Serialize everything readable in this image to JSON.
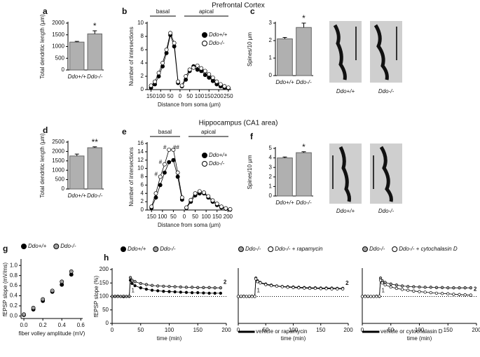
{
  "sections": [
    "Prefrontal Cortex",
    "Hippocampus (CA1 area)"
  ],
  "chart_data": [
    {
      "type": "bar",
      "label": "a",
      "categories": [
        "Ddo+/+",
        "Ddo-/-"
      ],
      "values": [
        1190,
        1540
      ],
      "errors": [
        30,
        130
      ],
      "ylim": [
        0,
        2000
      ],
      "yticks": [
        0,
        500,
        1000,
        1500,
        2000
      ],
      "ylabel": "Total dendritic length (µm)",
      "significance": "*",
      "color": "#b0b0b0"
    },
    {
      "type": "line",
      "label": "b",
      "group_labels": [
        "basal",
        "apical"
      ],
      "x": [
        -150,
        -130,
        -110,
        -90,
        -70,
        -50,
        -30,
        -10,
        0,
        10,
        30,
        50,
        70,
        90,
        110,
        130,
        150,
        170,
        190,
        210,
        230,
        250
      ],
      "series": [
        {
          "name": "Ddo+/+",
          "color": "#000000",
          "values": [
            0.3,
            0.8,
            2,
            3.5,
            5.5,
            8.2,
            6.5,
            1,
            null,
            0.5,
            1.5,
            2.8,
            3.5,
            3,
            2.8,
            2.2,
            1.8,
            1.3,
            0.8,
            0.5,
            0.3,
            0.2
          ]
        },
        {
          "name": "Ddo-/-",
          "color": "#ffffff",
          "values": [
            0.6,
            1.2,
            2.5,
            4,
            6,
            8.5,
            7,
            1.2,
            null,
            0.6,
            2,
            3,
            3.3,
            3.6,
            3.2,
            2.8,
            2.3,
            1.8,
            1.2,
            0.8,
            0.5,
            0.3
          ]
        }
      ],
      "xlim": [
        -170,
        265
      ],
      "xticks": [
        {
          "value": -150,
          "label": "150"
        },
        {
          "value": -100,
          "label": "100"
        },
        {
          "value": -50,
          "label": "50"
        },
        0,
        50,
        100,
        150,
        200,
        250
      ],
      "ylim": [
        0,
        10
      ],
      "yticks": [
        0,
        2,
        4,
        6,
        8,
        10
      ],
      "xlabel": "Distance from soma (µm)",
      "ylabel": "Number of intersections"
    },
    {
      "type": "bar",
      "label": "c",
      "categories": [
        "Ddo+/+",
        "Ddo-/-"
      ],
      "values": [
        2.1,
        2.75
      ],
      "errors": [
        0.08,
        0.25
      ],
      "ylim": [
        0,
        3
      ],
      "yticks": [
        0,
        1,
        2,
        3
      ],
      "ylabel": "Spines/10 µm",
      "significance": "*",
      "color": "#b0b0b0",
      "image_labels": [
        "Ddo+/+",
        "Ddo-/-"
      ]
    },
    {
      "type": "bar",
      "label": "d",
      "categories": [
        "Ddo+/+",
        "Ddo-/-"
      ],
      "values": [
        1760,
        2200
      ],
      "errors": [
        100,
        50
      ],
      "ylim": [
        0,
        2500
      ],
      "yticks": [
        0,
        500,
        1000,
        1500,
        2000,
        2500
      ],
      "ylabel": "Total dendritic length (µm)",
      "significance": "**",
      "color": "#b0b0b0"
    },
    {
      "type": "line",
      "label": "e",
      "group_labels": [
        "basal",
        "apical"
      ],
      "annotations": [
        "#",
        "#",
        "#",
        "##"
      ],
      "x": [
        -150,
        -130,
        -110,
        -90,
        -70,
        -50,
        -30,
        -10,
        0,
        10,
        30,
        50,
        70,
        90,
        110,
        130,
        150,
        170,
        190,
        210
      ],
      "series": [
        {
          "name": "Ddo+/+",
          "color": "#000000",
          "values": [
            0.5,
            3,
            6,
            9,
            11.5,
            12,
            8,
            2.5,
            null,
            0.5,
            2,
            3.5,
            4,
            4,
            3,
            2,
            1.2,
            0.6,
            0.3,
            0.1
          ]
        },
        {
          "name": "Ddo-/-",
          "color": "#ffffff",
          "values": [
            0.8,
            4,
            8,
            11,
            14.5,
            14.5,
            9,
            3,
            null,
            0.6,
            2.4,
            4,
            4.5,
            4.2,
            3.3,
            2.3,
            1.5,
            0.8,
            0.4,
            0.2
          ]
        }
      ],
      "xlim": [
        -170,
        215
      ],
      "xticks": [
        {
          "value": -150,
          "label": "150"
        },
        {
          "value": -100,
          "label": "100"
        },
        {
          "value": -50,
          "label": "50"
        },
        0,
        50,
        100,
        150,
        200
      ],
      "ylim": [
        0,
        16
      ],
      "yticks": [
        0,
        2,
        4,
        6,
        8,
        10,
        12,
        14,
        16
      ],
      "xlabel": "Distance from soma (µm)",
      "ylabel": "Number of intersections"
    },
    {
      "type": "bar",
      "label": "f",
      "categories": [
        "Ddo+/+",
        "Ddo-/-"
      ],
      "values": [
        4.0,
        4.55
      ],
      "errors": [
        0.1,
        0.1
      ],
      "ylim": [
        0,
        5
      ],
      "yticks": [
        0,
        1,
        2,
        3,
        4,
        5
      ],
      "ylabel": "Spines/10 µm",
      "significance": "*",
      "color": "#b0b0b0",
      "image_labels": [
        "Ddo+/+",
        "Ddo-/-"
      ]
    },
    {
      "type": "scatter",
      "label": "g",
      "x": [
        0,
        0.1,
        0.2,
        0.3,
        0.4,
        0.5
      ],
      "series": [
        {
          "name": "Ddo+/+",
          "color": "#000000",
          "values": [
            0.02,
            0.13,
            0.3,
            0.48,
            0.62,
            0.82
          ]
        },
        {
          "name": "Ddo-/-",
          "color": "#a0a0a0",
          "values": [
            0.03,
            0.16,
            0.33,
            0.5,
            0.68,
            0.88
          ]
        }
      ],
      "xlim": [
        -0.03,
        0.62
      ],
      "xticks": [
        {
          "value": 0,
          "label": "0.0"
        },
        0.2,
        0.4,
        0.6
      ],
      "ylim": [
        -0.05,
        1.1
      ],
      "yticks": [
        {
          "value": 0,
          "label": "0.0"
        },
        0.2,
        0.4,
        0.6,
        0.8,
        {
          "value": 1,
          "label": "1.0"
        }
      ],
      "xlabel": "fiber volley amplitude (mV)",
      "ylabel": "fEPSP slope (mV/ms)"
    },
    {
      "type": "line",
      "label": "h",
      "point_labels": [
        "1",
        "2"
      ],
      "reference": 100,
      "x": [
        0,
        5,
        10,
        15,
        20,
        25,
        30,
        32,
        35,
        40,
        50,
        60,
        70,
        80,
        90,
        100,
        110,
        120,
        130,
        140,
        150,
        160,
        170,
        180,
        190
      ],
      "series": [
        {
          "name": "Ddo+/+",
          "color": "#000000",
          "values": [
            100,
            100,
            101,
            100,
            99,
            100,
            100,
            160,
            148,
            140,
            132,
            127,
            123,
            121,
            119,
            118,
            117,
            116,
            115,
            114,
            114,
            113,
            112,
            112,
            112
          ]
        },
        {
          "name": "Ddo-/-",
          "color": "#a0a0a0",
          "values": [
            100,
            101,
            100,
            100,
            101,
            100,
            101,
            170,
            160,
            155,
            148,
            144,
            141,
            139,
            138,
            137,
            136,
            135,
            134,
            134,
            133,
            133,
            133,
            132,
            132
          ]
        }
      ],
      "xlim": [
        0,
        200
      ],
      "xticks": [
        0,
        50,
        100,
        150,
        200
      ],
      "ylim": [
        0,
        200
      ],
      "yticks": [
        0,
        50,
        100,
        150,
        200
      ],
      "xlabel": "time (min)",
      "ylabel": "fEPSP slope (%)"
    },
    {
      "type": "line",
      "treatment": "vehicle or rapamycin",
      "point_labels": [
        "1",
        "2"
      ],
      "reference": 100,
      "x": [
        0,
        5,
        10,
        15,
        20,
        25,
        30,
        32,
        35,
        40,
        50,
        60,
        70,
        80,
        90,
        100,
        110,
        120,
        130,
        140,
        150,
        160,
        170,
        180,
        190
      ],
      "series": [
        {
          "name": "Ddo-/-",
          "color": "#a0a0a0",
          "values": [
            100,
            100,
            101,
            100,
            100,
            101,
            100,
            168,
            158,
            152,
            146,
            142,
            139,
            137,
            136,
            135,
            134,
            133,
            132,
            132,
            131,
            131,
            131,
            130,
            130
          ]
        },
        {
          "name": "Ddo-/- + rapamycin",
          "color": "#ffffff",
          "values": [
            100,
            101,
            100,
            100,
            101,
            100,
            100,
            165,
            155,
            150,
            144,
            140,
            138,
            136,
            134,
            133,
            132,
            131,
            130,
            130,
            129,
            129,
            128,
            128,
            128
          ]
        }
      ],
      "xlim": [
        0,
        200
      ],
      "xticks": [
        0,
        50,
        100,
        150,
        200
      ],
      "ylim": [
        0,
        200
      ],
      "xlabel": "time (min)"
    },
    {
      "type": "line",
      "treatment": "vehicle or cytochalasin D",
      "point_labels": [
        "1",
        "2"
      ],
      "reference": 100,
      "x": [
        0,
        5,
        10,
        15,
        20,
        25,
        30,
        32,
        35,
        40,
        50,
        60,
        70,
        80,
        90,
        100,
        110,
        120,
        130,
        140,
        150,
        160,
        170,
        180,
        190
      ],
      "series": [
        {
          "name": "Ddo-/-",
          "color": "#a0a0a0",
          "values": [
            100,
            101,
            100,
            100,
            100,
            101,
            100,
            168,
            158,
            152,
            146,
            142,
            139,
            137,
            136,
            135,
            134,
            134,
            133,
            133,
            132,
            132,
            132,
            132,
            132
          ]
        },
        {
          "name": "Ddo-/- + cytochalasin D",
          "color": "#ffffff",
          "values": [
            100,
            100,
            101,
            100,
            100,
            100,
            101,
            160,
            150,
            143,
            135,
            130,
            126,
            123,
            120,
            118,
            116,
            114,
            112,
            111,
            110,
            108,
            107,
            106,
            105
          ]
        }
      ],
      "xlim": [
        0,
        200
      ],
      "xticks": [
        0,
        50,
        100,
        150,
        200
      ],
      "ylim": [
        0,
        200
      ],
      "xlabel": "time (min)"
    }
  ]
}
